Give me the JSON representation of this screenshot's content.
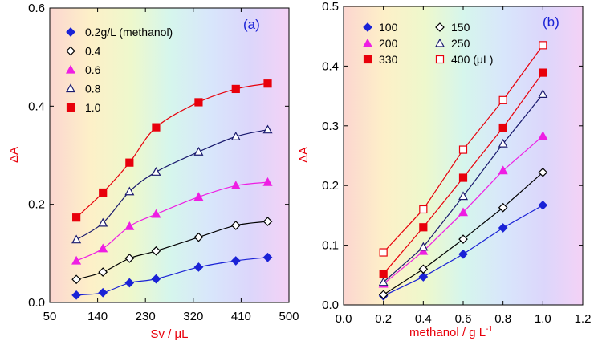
{
  "colors": {
    "axis_label": "#e8000b",
    "panel_label": "#1a22d6",
    "s1": "#1a22d6",
    "s2": "#000000",
    "s3": "#ee1ee3",
    "s4": "#1a1a6e",
    "s5": "#e8000b",
    "s6": "#e8000b"
  },
  "chart_data": [
    {
      "type": "line",
      "panel_label": "(a)",
      "xlabel_main": "Sv / ",
      "xlabel_unit": "μL",
      "ylabel": "ΔA",
      "xlim": [
        50,
        500
      ],
      "ylim": [
        0,
        0.6
      ],
      "xticks": [
        50,
        140,
        230,
        320,
        410,
        500
      ],
      "yticks": [
        0,
        0.2,
        0.4,
        0.6
      ],
      "xtick_labels": [
        "50",
        "140",
        "230",
        "320",
        "410",
        "500"
      ],
      "ytick_labels": [
        "0.0",
        "0.2",
        "0.4",
        "0.6"
      ],
      "legend_position": "top-left",
      "series": [
        {
          "name": "0.2g/L (methanol)",
          "marker": "diamond-filled",
          "color_key": "s1",
          "x": [
            100,
            150,
            200,
            250,
            330,
            400,
            460
          ],
          "y": [
            0.015,
            0.02,
            0.04,
            0.048,
            0.072,
            0.085,
            0.092
          ]
        },
        {
          "name": "0.4",
          "marker": "diamond-open",
          "color_key": "s2",
          "x": [
            100,
            150,
            200,
            250,
            330,
            400,
            460
          ],
          "y": [
            0.047,
            0.062,
            0.09,
            0.105,
            0.133,
            0.157,
            0.165
          ]
        },
        {
          "name": "0.6",
          "marker": "triangle-filled",
          "color_key": "s3",
          "x": [
            100,
            150,
            200,
            250,
            330,
            400,
            460
          ],
          "y": [
            0.085,
            0.11,
            0.155,
            0.18,
            0.215,
            0.238,
            0.245
          ]
        },
        {
          "name": "0.8",
          "marker": "triangle-open",
          "color_key": "s4",
          "x": [
            100,
            150,
            200,
            250,
            330,
            400,
            460
          ],
          "y": [
            0.128,
            0.162,
            0.226,
            0.266,
            0.307,
            0.338,
            0.352
          ]
        },
        {
          "name": "1.0",
          "marker": "square-filled",
          "color_key": "s5",
          "x": [
            100,
            150,
            200,
            250,
            330,
            400,
            460
          ],
          "y": [
            0.173,
            0.224,
            0.285,
            0.357,
            0.408,
            0.435,
            0.446
          ]
        }
      ]
    },
    {
      "type": "line",
      "panel_label": "(b)",
      "xlabel_main": "methanol / g L",
      "xlabel_sup": "-1",
      "ylabel": "ΔA",
      "xlim": [
        0,
        1.2
      ],
      "ylim": [
        0,
        0.5
      ],
      "xticks": [
        0,
        0.2,
        0.4,
        0.6,
        0.8,
        1.0,
        1.2
      ],
      "yticks": [
        0,
        0.1,
        0.2,
        0.3,
        0.4,
        0.5
      ],
      "xtick_labels": [
        "0.0",
        "0.2",
        "0.4",
        "0.6",
        "0.8",
        "1.0",
        "1.2"
      ],
      "ytick_labels": [
        "0.0",
        "0.1",
        "0.2",
        "0.3",
        "0.4",
        "0.5"
      ],
      "legend_position": "top-left",
      "series": [
        {
          "name": "100",
          "marker": "diamond-filled",
          "color_key": "s1",
          "x": [
            0.2,
            0.4,
            0.6,
            0.8,
            1.0
          ],
          "y": [
            0.015,
            0.047,
            0.085,
            0.129,
            0.167
          ]
        },
        {
          "name": "150",
          "marker": "diamond-open",
          "color_key": "s2",
          "x": [
            0.2,
            0.4,
            0.6,
            0.8,
            1.0
          ],
          "y": [
            0.017,
            0.06,
            0.11,
            0.163,
            0.222
          ]
        },
        {
          "name": "200",
          "marker": "triangle-filled",
          "color_key": "s3",
          "x": [
            0.2,
            0.4,
            0.6,
            0.8,
            1.0
          ],
          "y": [
            0.035,
            0.09,
            0.155,
            0.225,
            0.283
          ]
        },
        {
          "name": "250",
          "marker": "triangle-open",
          "color_key": "s4",
          "x": [
            0.2,
            0.4,
            0.6,
            0.8,
            1.0
          ],
          "y": [
            0.038,
            0.097,
            0.182,
            0.27,
            0.353
          ]
        },
        {
          "name": "330",
          "marker": "square-filled",
          "color_key": "s5",
          "x": [
            0.2,
            0.4,
            0.6,
            0.8,
            1.0
          ],
          "y": [
            0.052,
            0.13,
            0.213,
            0.297,
            0.389
          ]
        },
        {
          "name": "400 (μL)",
          "marker": "square-open",
          "color_key": "s6",
          "x": [
            0.2,
            0.4,
            0.6,
            0.8,
            1.0
          ],
          "y": [
            0.088,
            0.16,
            0.26,
            0.343,
            0.435
          ]
        }
      ]
    }
  ]
}
